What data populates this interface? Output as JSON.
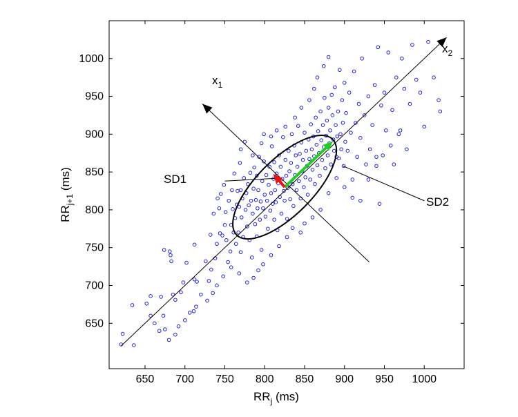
{
  "chart_data": {
    "type": "scatter",
    "title": "",
    "xlabel": {
      "main": "RR",
      "sub": "j",
      "unit": " (ms)"
    },
    "ylabel": {
      "main": "RR",
      "sub": "j+1",
      "unit": " (ms)"
    },
    "xlim": [
      605,
      1050
    ],
    "ylim": [
      590,
      1050
    ],
    "xticks": [
      650,
      700,
      750,
      800,
      850,
      900,
      950,
      1000
    ],
    "yticks": [
      650,
      700,
      750,
      800,
      850,
      900,
      950,
      1000
    ],
    "grid": false,
    "colors": {
      "points": "#2222dd",
      "sd1_arrow": "#ee1111",
      "sd2_arrow": "#22cc22",
      "axes": "#000000"
    },
    "ellipse": {
      "center": [
        825,
        830
      ],
      "sd1": 20,
      "sd2": 85
    },
    "annotations": {
      "x1": {
        "main": "x",
        "sub": "1"
      },
      "x2": {
        "main": "x",
        "sub": "2"
      },
      "sd1": "SD1",
      "sd2": "SD2"
    },
    "series": [
      {
        "values": [
          [
            620,
            622
          ],
          [
            622,
            636
          ],
          [
            636,
            621
          ],
          [
            634,
            674
          ],
          [
            652,
            676
          ],
          [
            657,
            660
          ],
          [
            657,
            686
          ],
          [
            670,
            685
          ],
          [
            673,
            660
          ],
          [
            675,
            642
          ],
          [
            674,
            747
          ],
          [
            681,
            745
          ],
          [
            682,
            740
          ],
          [
            683,
            732
          ],
          [
            685,
            688
          ],
          [
            688,
            681
          ],
          [
            695,
            691
          ],
          [
            698,
            704
          ],
          [
            702,
            730
          ],
          [
            711,
            666
          ],
          [
            712,
            708
          ],
          [
            712,
            754
          ],
          [
            715,
            705
          ],
          [
            726,
            732
          ],
          [
            730,
            706
          ],
          [
            732,
            767
          ],
          [
            733,
            721
          ],
          [
            736,
            795
          ],
          [
            738,
            736
          ],
          [
            740,
            755
          ],
          [
            741,
            815
          ],
          [
            743,
            802
          ],
          [
            744,
            769
          ],
          [
            745,
            821
          ],
          [
            747,
            766
          ],
          [
            749,
            833
          ],
          [
            750,
            780
          ],
          [
            751,
            797
          ],
          [
            752,
            760
          ],
          [
            754,
            731
          ],
          [
            755,
            812
          ],
          [
            757,
            745
          ],
          [
            758,
            780
          ],
          [
            759,
            826
          ],
          [
            760,
            801
          ],
          [
            761,
            770
          ],
          [
            762,
            848
          ],
          [
            763,
            789
          ],
          [
            764,
            755
          ],
          [
            765,
            807
          ],
          [
            766,
            825
          ],
          [
            767,
            770
          ],
          [
            768,
            804
          ],
          [
            769,
            862
          ],
          [
            770,
            826
          ],
          [
            770,
            744
          ],
          [
            771,
            790
          ],
          [
            772,
            815
          ],
          [
            773,
            764
          ],
          [
            774,
            842
          ],
          [
            775,
            890
          ],
          [
            776,
            800
          ],
          [
            777,
            822
          ],
          [
            778,
            778
          ],
          [
            779,
            834
          ],
          [
            780,
            806
          ],
          [
            781,
            760
          ],
          [
            782,
            849
          ],
          [
            783,
            812
          ],
          [
            784,
            737
          ],
          [
            785,
            795
          ],
          [
            786,
            828
          ],
          [
            787,
            856
          ],
          [
            788,
            781
          ],
          [
            789,
            813
          ],
          [
            790,
            765
          ],
          [
            790,
            845
          ],
          [
            791,
            802
          ],
          [
            792,
            826
          ],
          [
            793,
            870
          ],
          [
            794,
            787
          ],
          [
            795,
            811
          ],
          [
            796,
            747
          ],
          [
            797,
            838
          ],
          [
            798,
            802
          ],
          [
            799,
            864
          ],
          [
            799,
            900
          ],
          [
            800,
            820
          ],
          [
            801,
            791
          ],
          [
            802,
            846
          ],
          [
            803,
            812
          ],
          [
            804,
            775
          ],
          [
            805,
            833
          ],
          [
            806,
            857
          ],
          [
            807,
            799
          ],
          [
            808,
            822
          ],
          [
            809,
            884
          ],
          [
            810,
            808
          ],
          [
            811,
            841
          ],
          [
            812,
            787
          ],
          [
            812,
            863
          ],
          [
            813,
            826
          ],
          [
            814,
            810
          ],
          [
            815,
            848
          ],
          [
            816,
            773
          ],
          [
            817,
            835
          ],
          [
            818,
            872
          ],
          [
            819,
            817
          ],
          [
            820,
            857
          ],
          [
            821,
            795
          ],
          [
            822,
            841
          ],
          [
            823,
            896
          ],
          [
            824,
            825
          ],
          [
            825,
            812
          ],
          [
            826,
            866
          ],
          [
            827,
            845
          ],
          [
            828,
            788
          ],
          [
            829,
            829
          ],
          [
            830,
            878
          ],
          [
            831,
            851
          ],
          [
            832,
            814
          ],
          [
            833,
            862
          ],
          [
            834,
            900
          ],
          [
            835,
            834
          ],
          [
            836,
            805
          ],
          [
            837,
            885
          ],
          [
            838,
            846
          ],
          [
            839,
            872
          ],
          [
            840,
            826
          ],
          [
            841,
            857
          ],
          [
            842,
            911
          ],
          [
            843,
            838
          ],
          [
            844,
            874
          ],
          [
            845,
            815
          ],
          [
            846,
            889
          ],
          [
            847,
            851
          ],
          [
            848,
            866
          ],
          [
            849,
            830
          ],
          [
            850,
            902
          ],
          [
            851,
            843
          ],
          [
            852,
            878
          ],
          [
            853,
            858
          ],
          [
            854,
            820
          ],
          [
            855,
            893
          ],
          [
            856,
            867
          ],
          [
            857,
            840
          ],
          [
            858,
            913
          ],
          [
            859,
            880
          ],
          [
            860,
            853
          ],
          [
            861,
            897
          ],
          [
            862,
            871
          ],
          [
            863,
            834
          ],
          [
            864,
            922
          ],
          [
            865,
            886
          ],
          [
            866,
            859
          ],
          [
            867,
            904
          ],
          [
            868,
            875
          ],
          [
            869,
            845
          ],
          [
            870,
            930
          ],
          [
            871,
            892
          ],
          [
            872,
            866
          ],
          [
            873,
            912
          ],
          [
            874,
            883
          ],
          [
            875,
            948
          ],
          [
            876,
            855
          ],
          [
            877,
            898
          ],
          [
            878,
            918
          ],
          [
            879,
            872
          ],
          [
            880,
            935
          ],
          [
            881,
            888
          ],
          [
            882,
            905
          ],
          [
            883,
            860
          ],
          [
            884,
            952
          ],
          [
            885,
            925
          ],
          [
            886,
            893
          ],
          [
            887,
            878
          ],
          [
            888,
            962
          ],
          [
            889,
            912
          ],
          [
            890,
            842
          ],
          [
            891,
            897
          ],
          [
            892,
            930
          ],
          [
            893,
            868
          ],
          [
            894,
            985
          ],
          [
            895,
            900
          ],
          [
            896,
            880
          ],
          [
            897,
            945
          ],
          [
            898,
            915
          ],
          [
            899,
            858
          ],
          [
            900,
            968
          ],
          [
            901,
            890
          ],
          [
            902,
            928
          ],
          [
            904,
            878
          ],
          [
            906,
            955
          ],
          [
            908,
            902
          ],
          [
            910,
            840
          ],
          [
            912,
            983
          ],
          [
            914,
            915
          ],
          [
            916,
            870
          ],
          [
            918,
            940
          ],
          [
            920,
            895
          ],
          [
            922,
            1000
          ],
          [
            925,
            925
          ],
          [
            927,
            860
          ],
          [
            930,
            950
          ],
          [
            932,
            880
          ],
          [
            935,
            912
          ],
          [
            938,
            965
          ],
          [
            940,
            870
          ],
          [
            942,
            1015
          ],
          [
            944,
            808
          ],
          [
            946,
            938
          ],
          [
            948,
            872
          ],
          [
            950,
            955
          ],
          [
            952,
            905
          ],
          [
            955,
            1008
          ],
          [
            958,
            885
          ],
          [
            960,
            932
          ],
          [
            962,
            860
          ],
          [
            965,
            975
          ],
          [
            968,
            900
          ],
          [
            970,
            905
          ],
          [
            972,
            1000
          ],
          [
            975,
            960
          ],
          [
            978,
            880
          ],
          [
            982,
            940
          ],
          [
            985,
            1018
          ],
          [
            990,
            972
          ],
          [
            995,
            955
          ],
          [
            1000,
            910
          ],
          [
            1005,
            1022
          ],
          [
            1012,
            975
          ],
          [
            1018,
            945
          ],
          [
            1020,
            930
          ],
          [
            770,
            880
          ],
          [
            785,
            872
          ],
          [
            796,
            888
          ],
          [
            808,
            897
          ],
          [
            815,
            905
          ],
          [
            826,
            910
          ],
          [
            838,
            922
          ],
          [
            846,
            935
          ],
          [
            856,
            945
          ],
          [
            862,
            960
          ],
          [
            866,
            975
          ],
          [
            874,
            990
          ],
          [
            880,
            1002
          ],
          [
            890,
            870
          ],
          [
            900,
            830
          ],
          [
            910,
            816
          ],
          [
            920,
            812
          ],
          [
            930,
            840
          ],
          [
            940,
            858
          ],
          [
            880,
            822
          ],
          [
            870,
            800
          ],
          [
            860,
            790
          ],
          [
            850,
            782
          ],
          [
            845,
            770
          ],
          [
            835,
            776
          ],
          [
            828,
            764
          ],
          [
            818,
            752
          ],
          [
            808,
            740
          ],
          [
            798,
            728
          ],
          [
            792,
            720
          ],
          [
            786,
            710
          ],
          [
            778,
            704
          ],
          [
            768,
            716
          ],
          [
            758,
            724
          ],
          [
            748,
            712
          ],
          [
            740,
            700
          ],
          [
            735,
            690
          ],
          [
            728,
            680
          ],
          [
            720,
            688
          ],
          [
            714,
            672
          ],
          [
            706,
            664
          ],
          [
            700,
            654
          ],
          [
            692,
            646
          ],
          [
            688,
            635
          ],
          [
            680,
            628
          ],
          [
            668,
            640
          ],
          [
            662,
            650
          ]
        ]
      }
    ]
  }
}
